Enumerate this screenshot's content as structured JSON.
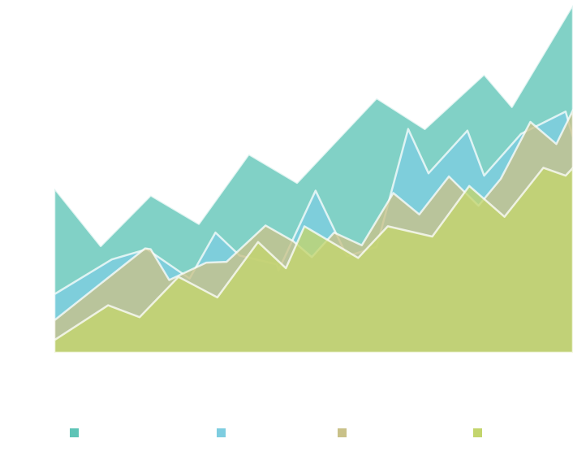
{
  "chart_data": {
    "type": "area",
    "stacked": false,
    "x": [
      0,
      1,
      2,
      3,
      4,
      5,
      6,
      7,
      8,
      9,
      10,
      11,
      12,
      13,
      14,
      15,
      16,
      17,
      18,
      19,
      20,
      21,
      22,
      23,
      24,
      25,
      26,
      27,
      28
    ],
    "xlim": [
      0,
      28
    ],
    "ylim": [
      0,
      440
    ],
    "grid": false,
    "legend_position": "bottom",
    "series": [
      {
        "color": "#5ec4b6",
        "points": [
          [
            0,
            208
          ],
          [
            2.5,
            135
          ],
          [
            5.2,
            199
          ],
          [
            7.8,
            163
          ],
          [
            10.5,
            251
          ],
          [
            13.1,
            215
          ],
          [
            17.4,
            322
          ],
          [
            20,
            283
          ],
          [
            23.2,
            352
          ],
          [
            24.7,
            311
          ],
          [
            28,
            440
          ]
        ]
      },
      {
        "color": "#7ecde0",
        "points": [
          [
            0,
            74
          ],
          [
            3.1,
            118
          ],
          [
            5,
            131
          ],
          [
            7.3,
            94
          ],
          [
            8.7,
            152
          ],
          [
            10,
            123
          ],
          [
            12,
            112
          ],
          [
            12.1,
            104
          ],
          [
            14.1,
            205
          ],
          [
            15.8,
            122
          ],
          [
            17.4,
            134
          ],
          [
            19.1,
            283
          ],
          [
            20.2,
            227
          ],
          [
            22.3,
            281
          ],
          [
            23.2,
            224
          ],
          [
            25.2,
            277
          ],
          [
            27.6,
            305
          ],
          [
            28,
            272
          ]
        ]
      },
      {
        "color": "#c9c189",
        "points": [
          [
            0,
            41
          ],
          [
            4.9,
            132
          ],
          [
            5.2,
            131
          ],
          [
            6.2,
            92
          ],
          [
            8.2,
            114
          ],
          [
            9.3,
            115
          ],
          [
            11.4,
            161
          ],
          [
            12.9,
            141
          ],
          [
            13.9,
            121
          ],
          [
            15.1,
            152
          ],
          [
            16.6,
            136
          ],
          [
            18.3,
            202
          ],
          [
            19.7,
            175
          ],
          [
            21.3,
            223
          ],
          [
            22.9,
            186
          ],
          [
            24.1,
            220
          ],
          [
            25.7,
            292
          ],
          [
            27.1,
            264
          ],
          [
            28,
            307
          ]
        ]
      },
      {
        "color": "#c3d56d",
        "points": [
          [
            0,
            16
          ],
          [
            2.9,
            60
          ],
          [
            4.6,
            45
          ],
          [
            6.7,
            96
          ],
          [
            8.8,
            70
          ],
          [
            11,
            140
          ],
          [
            12.5,
            107
          ],
          [
            13.5,
            160
          ],
          [
            16.4,
            120
          ],
          [
            18,
            160
          ],
          [
            20.4,
            147
          ],
          [
            22.4,
            211
          ],
          [
            24.3,
            172
          ],
          [
            26.4,
            234
          ],
          [
            27.6,
            224
          ],
          [
            28,
            234
          ]
        ]
      }
    ]
  }
}
